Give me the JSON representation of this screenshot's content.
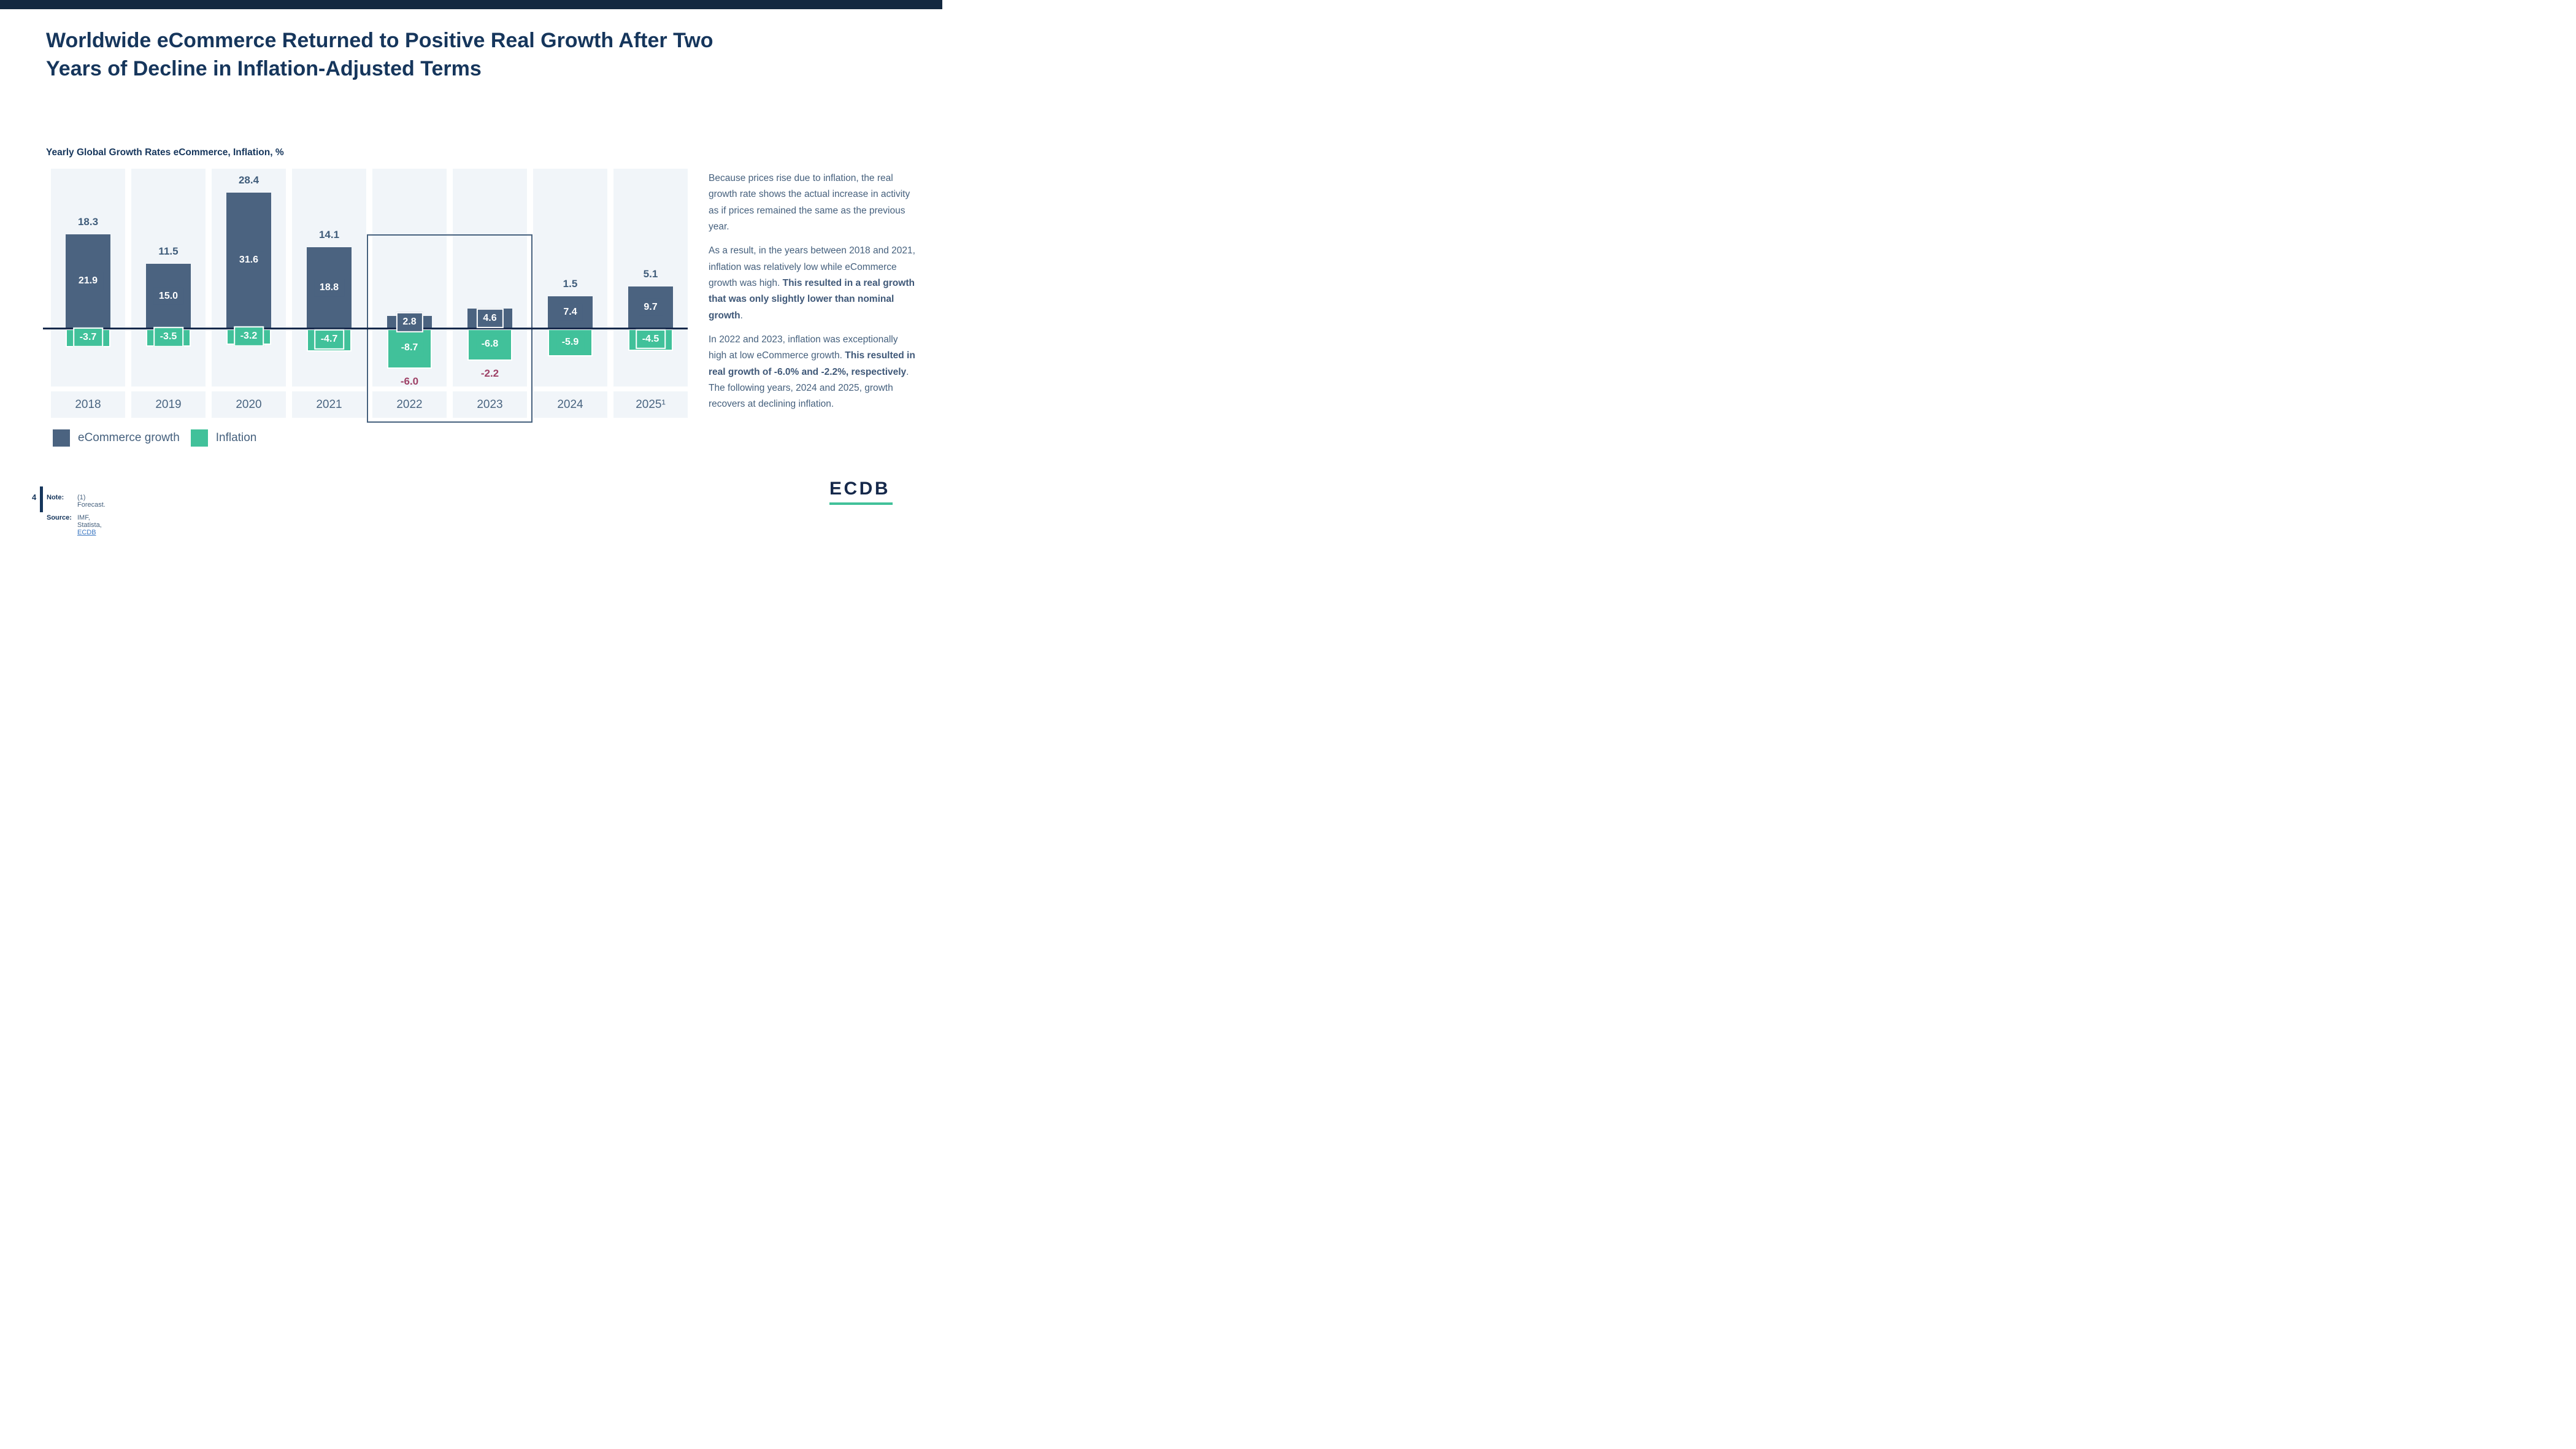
{
  "title": {
    "line1": "Worldwide eCommerce Returned to Positive Real Growth After Two",
    "line2": "Years of Decline in Inflation-Adjusted Terms"
  },
  "chart": {
    "subtitle": "Yearly Global Growth Rates eCommerce, Inflation, %"
  },
  "chart_data": {
    "type": "bar",
    "title": "Yearly Global Growth Rates eCommerce, Inflation, %",
    "unit": "%",
    "categories": [
      "2018",
      "2019",
      "2020",
      "2021",
      "2022",
      "2023",
      "2024",
      "2025¹"
    ],
    "series": [
      {
        "name": "eCommerce growth",
        "color": "#4b6380",
        "values": [
          21.9,
          15.0,
          31.6,
          18.8,
          2.8,
          4.6,
          7.4,
          9.7
        ]
      },
      {
        "name": "Inflation",
        "color": "#41c19a",
        "values": [
          -3.7,
          -3.5,
          -3.2,
          -4.7,
          -8.7,
          -6.8,
          -5.9,
          -4.5
        ]
      }
    ],
    "real_growth_labels": {
      "description": "eCommerce real growth (nominal growth minus inflation), shown outside the bars",
      "values": [
        18.3,
        11.5,
        28.4,
        14.1,
        -6.0,
        -2.2,
        1.5,
        5.1
      ],
      "positive_color": "#3f5c7a",
      "negative_color": "#9e4166"
    },
    "highlight_years": [
      "2022",
      "2023"
    ],
    "axis_color": "#16294b",
    "band_color": "#f1f5f9",
    "grid": false,
    "legend_position": "bottom-left",
    "baseline": 0
  },
  "legend": [
    {
      "label": "eCommerce growth",
      "color": "#4b6380"
    },
    {
      "label": "Inflation",
      "color": "#41c19a"
    }
  ],
  "sidebar": {
    "p1": "Because prices rise due to inflation, the real growth rate shows the actual increase in activity as if prices remained the same as the previous year.",
    "p2_normal": "As a result, in the years between 2018 and 2021, inflation was relatively low while eCommerce growth was high. ",
    "p2_bold": "This resulted in a real growth that was only slightly lower than nominal growth",
    "p2_end": ".",
    "p3_normal": "In 2022 and 2023, inflation was exceptionally high at low eCommerce growth. ",
    "p3_bold": "This resulted in real growth of -6.0% and -2.2%, respectively",
    "p3_end": ". The following years, 2024 and 2025, growth recovers at declining inflation."
  },
  "footer": {
    "page_number": "4",
    "note_label": "Note:",
    "note_text": "(1) Forecast.",
    "source_label": "Source:",
    "source_text": "IMF, Statista, ",
    "source_link": "ECDB"
  },
  "logo": {
    "text": "ECDB",
    "text_color": "#16294b",
    "underline_color": "#41c19a"
  }
}
